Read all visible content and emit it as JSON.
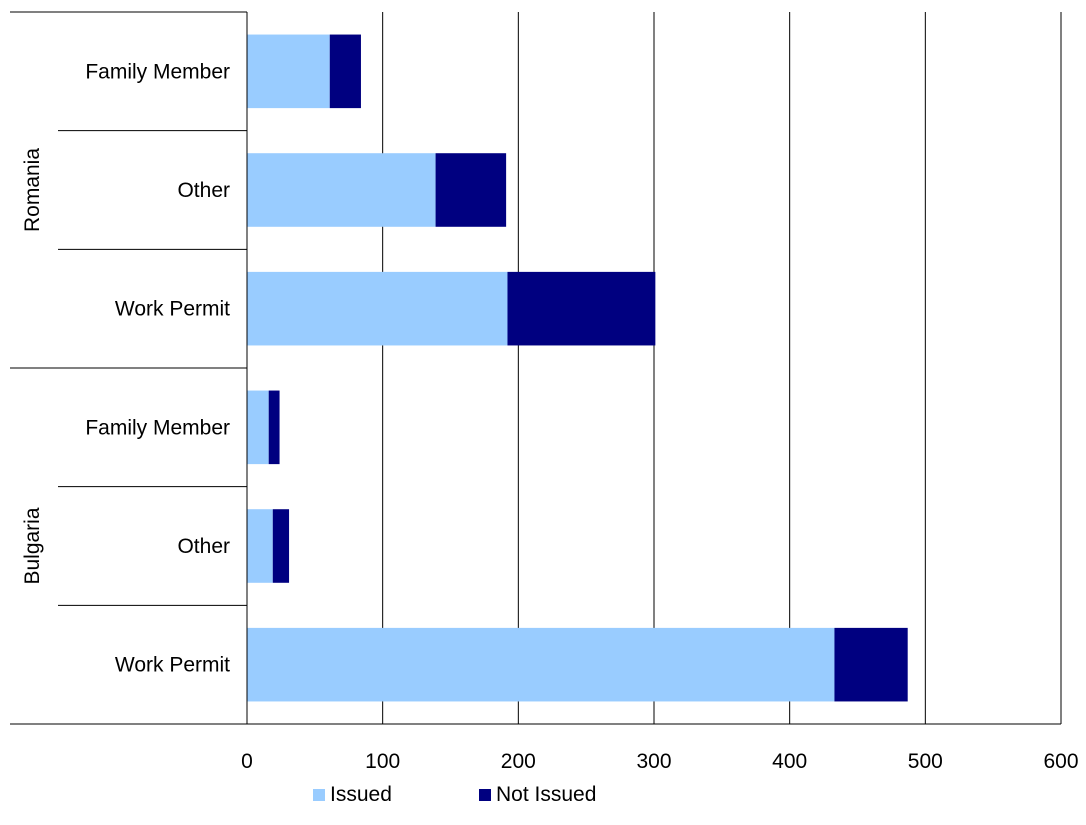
{
  "chart_data": {
    "type": "bar",
    "orientation": "horizontal",
    "stacked": true,
    "title": "",
    "xlabel": "",
    "ylabel": "",
    "xlim": [
      0,
      600
    ],
    "x_ticks": [
      0,
      100,
      200,
      300,
      400,
      500,
      600
    ],
    "grid": "vertical",
    "legend_position": "bottom",
    "groups": [
      {
        "name": "Romania",
        "categories": [
          "Family Member",
          "Other",
          "Work Permit"
        ]
      },
      {
        "name": "Bulgaria",
        "categories": [
          "Family Member",
          "Other",
          "Work Permit"
        ]
      }
    ],
    "series": [
      {
        "name": "Issued",
        "color": "#99ccff",
        "values": [
          61,
          139,
          192,
          16,
          19,
          433
        ]
      },
      {
        "name": "Not Issued",
        "color": "#000080",
        "values": [
          23,
          52,
          109,
          8,
          12,
          54
        ]
      }
    ]
  }
}
